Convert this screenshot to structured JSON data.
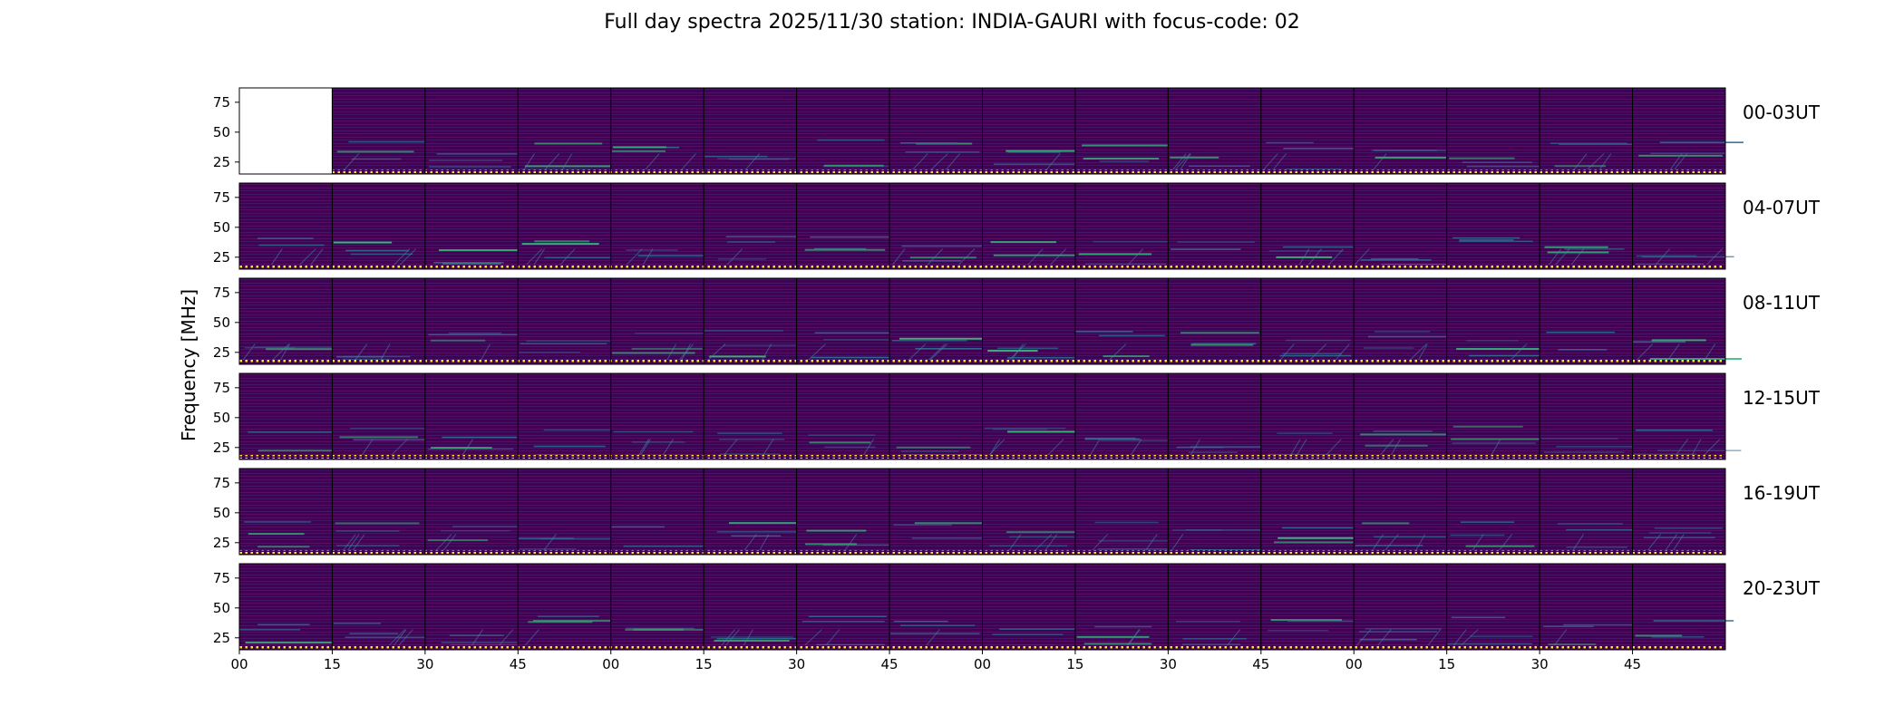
{
  "chart_data": {
    "type": "heatmap",
    "title": "Full day spectra 2025/11/30 station: INDIA-GAURI with focus-code: 02",
    "ylabel": "Frequency [MHz]",
    "xlabel": "",
    "ylim": [
      15,
      87
    ],
    "yticks": [
      "75",
      "50",
      "25"
    ],
    "ytick_values": [
      75,
      50,
      25
    ],
    "xticks": [
      "00",
      "15",
      "30",
      "45",
      "00",
      "15",
      "30",
      "45",
      "00",
      "15",
      "30",
      "45",
      "00",
      "15",
      "30",
      "45"
    ],
    "panels_per_row": 16,
    "panel_minutes": 15,
    "colormap": "viridis",
    "rows": [
      {
        "label": "00-03UT",
        "missing_panels": [
          0
        ]
      },
      {
        "label": "04-07UT",
        "missing_panels": []
      },
      {
        "label": "08-11UT",
        "missing_panels": []
      },
      {
        "label": "12-15UT",
        "missing_panels": []
      },
      {
        "label": "16-19UT",
        "missing_panels": []
      },
      {
        "label": "20-23UT",
        "missing_panels": []
      }
    ]
  },
  "colors": {
    "background": "#440154",
    "baseline_dots": "#fde725",
    "bright_features": "#35b779",
    "mid_features": "#31688e"
  }
}
